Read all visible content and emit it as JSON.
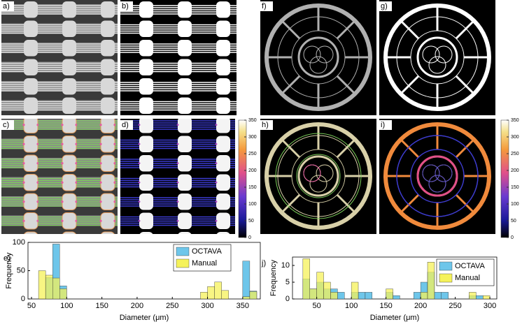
{
  "panels": {
    "a": "a)",
    "b": "b)",
    "c": "c)",
    "d": "d)",
    "e": "e)",
    "f": "f)",
    "g": "g)",
    "h": "h)",
    "i": "i)",
    "j": "j)"
  },
  "colorbars": [
    {
      "ticks": [
        0,
        50,
        100,
        150,
        200,
        250,
        300,
        350
      ]
    },
    {
      "ticks": [
        0,
        50,
        100,
        150,
        200,
        250,
        300,
        350
      ]
    }
  ],
  "chart_data": [
    {
      "type": "histogram",
      "xlabel": "Diameter (μm)",
      "ylabel": "Frequency",
      "bins": [
        60,
        70,
        80,
        90,
        100,
        110,
        120,
        130,
        140,
        150,
        160,
        170,
        180,
        190,
        200,
        210,
        220,
        230,
        240,
        250,
        260,
        270,
        280,
        290,
        300,
        310,
        320,
        330,
        340,
        350,
        360,
        370
      ],
      "series": [
        {
          "name": "OCTAVA",
          "color": "#6ec6ea",
          "values": [
            0,
            38,
            97,
            23,
            0,
            0,
            0,
            0,
            0,
            0,
            0,
            0,
            0,
            0,
            0,
            0,
            0,
            0,
            0,
            0,
            0,
            0,
            0,
            0,
            0,
            0,
            0,
            0,
            0,
            67,
            14
          ]
        },
        {
          "name": "Manual",
          "color": "#f5f25a",
          "values": [
            50,
            42,
            37,
            18,
            0,
            0,
            0,
            0,
            0,
            0,
            0,
            0,
            0,
            0,
            0,
            0,
            0,
            0,
            0,
            0,
            0,
            0,
            0,
            12,
            22,
            30,
            15,
            0,
            0,
            4,
            13
          ]
        }
      ],
      "xlim": [
        45,
        375
      ],
      "xticks": [
        50,
        100,
        150,
        200,
        250,
        300,
        350
      ],
      "ylim": [
        0,
        100
      ],
      "yticks": [
        0,
        50,
        100
      ],
      "legend": "upper right"
    },
    {
      "type": "histogram",
      "xlabel": "Diameter (μm)",
      "ylabel": "Frequency",
      "bins": [
        30,
        40,
        50,
        60,
        70,
        80,
        90,
        100,
        110,
        120,
        130,
        140,
        150,
        160,
        170,
        180,
        190,
        200,
        210,
        220,
        230,
        240,
        250,
        260,
        270,
        280,
        290,
        300
      ],
      "series": [
        {
          "name": "OCTAVA",
          "color": "#6ec6ea",
          "values": [
            6,
            3,
            5,
            3,
            3,
            2,
            0,
            2,
            2,
            2,
            0,
            0,
            2,
            1,
            0,
            0,
            2,
            5,
            8,
            2,
            2,
            0,
            0,
            0,
            1,
            1,
            0
          ]
        },
        {
          "name": "Manual",
          "color": "#f5f25a",
          "values": [
            12,
            3,
            8,
            5,
            2,
            0,
            0,
            5,
            0,
            0,
            0,
            0,
            3,
            0,
            0,
            0,
            0,
            2,
            11,
            0,
            0,
            0,
            0,
            0,
            2,
            0,
            1
          ]
        }
      ],
      "xlim": [
        15,
        310
      ],
      "xticks": [
        50,
        100,
        150,
        200,
        250,
        300
      ],
      "ylim": [
        0,
        12.5
      ],
      "yticks": [
        0,
        5,
        10
      ],
      "legend": "upper right"
    }
  ]
}
